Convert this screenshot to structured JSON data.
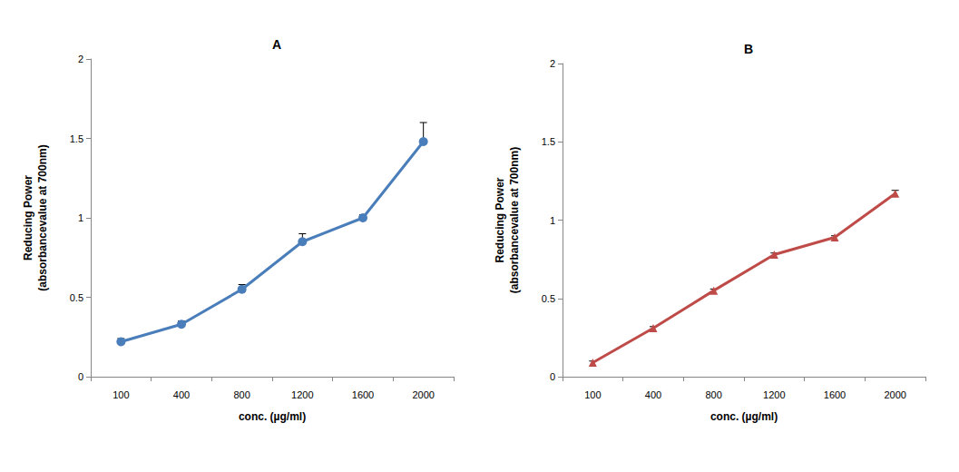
{
  "chart_data": [
    {
      "type": "line",
      "title": "A",
      "xlabel": "conc. (µg/ml)",
      "ylabel": "Reducing Power\n(absorbancevalue at 700nm)",
      "categories": [
        "100",
        "400",
        "800",
        "1200",
        "1600",
        "2000"
      ],
      "values": [
        0.22,
        0.33,
        0.55,
        0.85,
        1.0,
        1.48
      ],
      "errors": [
        0.02,
        0.02,
        0.03,
        0.05,
        0.02,
        0.12
      ],
      "color": "#4a7ebb",
      "marker": "circle",
      "ylim": [
        0,
        2
      ],
      "yticks": [
        0,
        0.5,
        1,
        1.5,
        2
      ],
      "grid": false
    },
    {
      "type": "line",
      "title": "B",
      "xlabel": "conc. (µg/ml)",
      "ylabel": "Reducing Power\n(absorbancevalue at 700nm)",
      "categories": [
        "100",
        "400",
        "800",
        "1200",
        "1600",
        "2000"
      ],
      "values": [
        0.09,
        0.31,
        0.55,
        0.78,
        0.89,
        1.17
      ],
      "errors": [
        0.01,
        0.01,
        0.01,
        0.01,
        0.01,
        0.02
      ],
      "color": "#be4b48",
      "marker": "triangle",
      "ylim": [
        0,
        2
      ],
      "yticks": [
        0,
        0.5,
        1,
        1.5,
        2
      ],
      "grid": false
    }
  ]
}
